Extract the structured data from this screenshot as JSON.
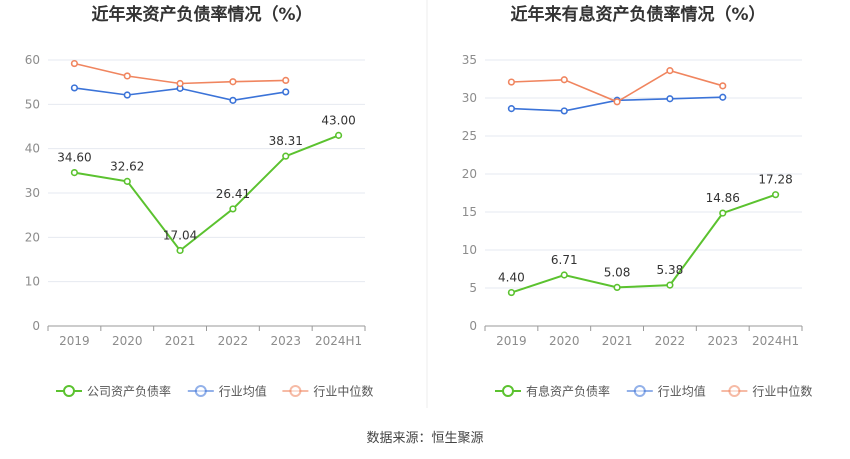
{
  "source_label": "数据来源：恒生聚源",
  "colors": {
    "primary": "#5bc22f",
    "industry_avg": "#3b73d8",
    "industry_median": "#f0855f",
    "grid": "#e6e9f0",
    "axis": "#8c8c8c",
    "title": "#333333"
  },
  "chart_data": [
    {
      "type": "line",
      "title": "近年来资产负债率情况（%）",
      "categories": [
        "2019",
        "2020",
        "2021",
        "2022",
        "2023",
        "2024H1"
      ],
      "ylim": [
        0,
        60
      ],
      "yticks": [
        0,
        10,
        20,
        30,
        40,
        50,
        60
      ],
      "grid": true,
      "legend_position": "bottom",
      "series": [
        {
          "name": "公司资产负债率",
          "color": "#5bc22f",
          "values": [
            34.6,
            32.62,
            17.04,
            26.41,
            38.31,
            43.0
          ],
          "labels": [
            "34.60",
            "32.62",
            "17.04",
            "26.41",
            "38.31",
            "43.00"
          ]
        },
        {
          "name": "行业均值",
          "color": "#3b73d8",
          "values": [
            53.7,
            52.1,
            53.6,
            50.9,
            52.8,
            null
          ]
        },
        {
          "name": "行业中位数",
          "color": "#f0855f",
          "values": [
            59.2,
            56.4,
            54.7,
            55.1,
            55.4,
            null
          ]
        }
      ]
    },
    {
      "type": "line",
      "title": "近年来有息资产负债率情况（%）",
      "categories": [
        "2019",
        "2020",
        "2021",
        "2022",
        "2023",
        "2024H1"
      ],
      "ylim": [
        0,
        35
      ],
      "yticks": [
        0,
        5,
        10,
        15,
        20,
        25,
        30,
        35
      ],
      "grid": true,
      "legend_position": "bottom",
      "series": [
        {
          "name": "有息资产负债率",
          "color": "#5bc22f",
          "values": [
            4.4,
            6.71,
            5.08,
            5.38,
            14.86,
            17.28
          ],
          "labels": [
            "4.40",
            "6.71",
            "5.08",
            "5.38",
            "14.86",
            "17.28"
          ]
        },
        {
          "name": "行业均值",
          "color": "#3b73d8",
          "values": [
            28.6,
            28.3,
            29.7,
            29.9,
            30.1,
            null
          ]
        },
        {
          "name": "行业中位数",
          "color": "#f0855f",
          "values": [
            32.1,
            32.4,
            29.5,
            33.6,
            31.6,
            null
          ]
        }
      ]
    }
  ]
}
